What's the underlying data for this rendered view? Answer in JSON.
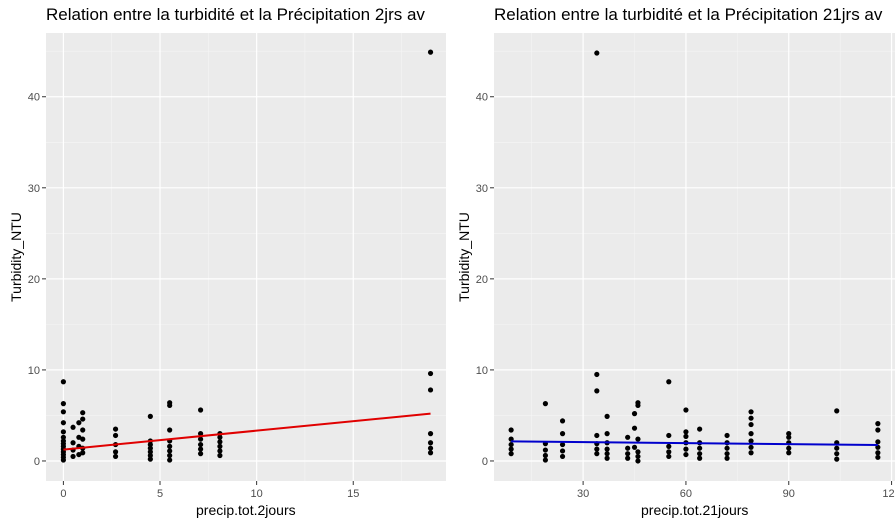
{
  "chart_data": [
    {
      "type": "scatter",
      "title": "Relation entre la turbidité et la Précipitation 2jrs av",
      "xlabel": "precip.tot.2jours",
      "ylabel": "Turbidity_NTU",
      "xlim": [
        -0.9,
        19.8
      ],
      "ylim": [
        -2.2,
        47.0
      ],
      "xticks": [
        0,
        5,
        10,
        15
      ],
      "yticks": [
        0,
        10,
        20,
        30,
        40
      ],
      "grid": true,
      "fit_color": "#e00000",
      "points": [
        [
          0,
          0.1
        ],
        [
          0,
          0.4
        ],
        [
          0,
          0.7
        ],
        [
          0,
          1.0
        ],
        [
          0,
          1.3
        ],
        [
          0,
          1.6
        ],
        [
          0,
          1.9
        ],
        [
          0,
          2.2
        ],
        [
          0,
          2.6
        ],
        [
          0,
          3.2
        ],
        [
          0,
          4.2
        ],
        [
          0,
          5.4
        ],
        [
          0,
          6.3
        ],
        [
          0,
          8.7
        ],
        [
          0.5,
          0.5
        ],
        [
          0.5,
          1.2
        ],
        [
          0.5,
          2.0
        ],
        [
          0.5,
          3.7
        ],
        [
          0.8,
          0.7
        ],
        [
          0.8,
          1.6
        ],
        [
          0.8,
          2.6
        ],
        [
          0.8,
          4.2
        ],
        [
          1.0,
          0.9
        ],
        [
          1.0,
          1.4
        ],
        [
          1.0,
          2.4
        ],
        [
          1.0,
          3.4
        ],
        [
          1.0,
          4.6
        ],
        [
          1.0,
          5.3
        ],
        [
          2.7,
          0.5
        ],
        [
          2.7,
          1.0
        ],
        [
          2.7,
          1.8
        ],
        [
          2.7,
          2.8
        ],
        [
          2.7,
          3.5
        ],
        [
          4.5,
          0.2
        ],
        [
          4.5,
          0.6
        ],
        [
          4.5,
          1.0
        ],
        [
          4.5,
          1.4
        ],
        [
          4.5,
          1.8
        ],
        [
          4.5,
          2.2
        ],
        [
          4.5,
          4.9
        ],
        [
          5.5,
          0.1
        ],
        [
          5.5,
          0.6
        ],
        [
          5.5,
          1.1
        ],
        [
          5.5,
          1.6
        ],
        [
          5.5,
          2.2
        ],
        [
          5.5,
          6.1
        ],
        [
          5.5,
          6.4
        ],
        [
          5.5,
          3.4
        ],
        [
          7.1,
          0.8
        ],
        [
          7.1,
          1.3
        ],
        [
          7.1,
          1.8
        ],
        [
          7.1,
          2.4
        ],
        [
          7.1,
          3.0
        ],
        [
          7.1,
          5.6
        ],
        [
          8.1,
          0.6
        ],
        [
          8.1,
          1.1
        ],
        [
          8.1,
          1.6
        ],
        [
          8.1,
          2.1
        ],
        [
          8.1,
          2.6
        ],
        [
          8.1,
          3.0
        ],
        [
          19.0,
          0.9
        ],
        [
          19.0,
          1.4
        ],
        [
          19.0,
          2.0
        ],
        [
          19.0,
          3.0
        ],
        [
          19.0,
          7.8
        ],
        [
          19.0,
          9.6
        ],
        [
          19.0,
          44.9
        ]
      ],
      "fit": [
        [
          0,
          1.25
        ],
        [
          19.0,
          5.2
        ]
      ]
    },
    {
      "type": "scatter",
      "title": "Relation entre la turbidité et la Précipitation 21jrs av",
      "xlabel": "precip.tot.21jours",
      "ylabel": "Turbidity_NTU",
      "xlim": [
        4.0,
        121.0
      ],
      "ylim": [
        -2.2,
        47.0
      ],
      "xticks": [
        30,
        60,
        90,
        120
      ],
      "yticks": [
        0,
        10,
        20,
        30,
        40
      ],
      "grid": true,
      "fit_color": "#0000cc",
      "points": [
        [
          9,
          0.8
        ],
        [
          9,
          1.3
        ],
        [
          9,
          1.8
        ],
        [
          9,
          2.4
        ],
        [
          9,
          3.4
        ],
        [
          19,
          0.1
        ],
        [
          19,
          0.6
        ],
        [
          19,
          1.2
        ],
        [
          19,
          1.9
        ],
        [
          19,
          6.3
        ],
        [
          24,
          0.5
        ],
        [
          24,
          1.1
        ],
        [
          24,
          1.8
        ],
        [
          24,
          3.0
        ],
        [
          24,
          4.4
        ],
        [
          34,
          0.8
        ],
        [
          34,
          1.3
        ],
        [
          34,
          1.9
        ],
        [
          34,
          2.8
        ],
        [
          34,
          7.7
        ],
        [
          34,
          9.5
        ],
        [
          34,
          44.8
        ],
        [
          37,
          0.3
        ],
        [
          37,
          0.8
        ],
        [
          37,
          1.3
        ],
        [
          37,
          2.0
        ],
        [
          37,
          3.0
        ],
        [
          37,
          4.9
        ],
        [
          43,
          0.3
        ],
        [
          43,
          0.8
        ],
        [
          43,
          1.4
        ],
        [
          43,
          2.6
        ],
        [
          45,
          1.5
        ],
        [
          45,
          3.6
        ],
        [
          45,
          5.2
        ],
        [
          46,
          0.0
        ],
        [
          46,
          0.5
        ],
        [
          46,
          1.0
        ],
        [
          46,
          2.4
        ],
        [
          46,
          6.1
        ],
        [
          46,
          6.4
        ],
        [
          55,
          0.5
        ],
        [
          55,
          1.0
        ],
        [
          55,
          1.6
        ],
        [
          55,
          2.8
        ],
        [
          55,
          8.7
        ],
        [
          60,
          0.7
        ],
        [
          60,
          1.3
        ],
        [
          60,
          2.0
        ],
        [
          60,
          2.7
        ],
        [
          60,
          3.2
        ],
        [
          60,
          5.6
        ],
        [
          64,
          0.3
        ],
        [
          64,
          0.8
        ],
        [
          64,
          1.4
        ],
        [
          64,
          2.0
        ],
        [
          64,
          3.5
        ],
        [
          72,
          0.3
        ],
        [
          72,
          0.8
        ],
        [
          72,
          1.4
        ],
        [
          72,
          2.0
        ],
        [
          72,
          2.8
        ],
        [
          79,
          0.9
        ],
        [
          79,
          1.5
        ],
        [
          79,
          2.2
        ],
        [
          79,
          3.0
        ],
        [
          79,
          4.0
        ],
        [
          79,
          4.7
        ],
        [
          79,
          5.4
        ],
        [
          90,
          0.9
        ],
        [
          90,
          1.4
        ],
        [
          90,
          2.0
        ],
        [
          90,
          2.6
        ],
        [
          90,
          3.0
        ],
        [
          104,
          0.2
        ],
        [
          104,
          0.8
        ],
        [
          104,
          1.4
        ],
        [
          104,
          2.0
        ],
        [
          104,
          5.5
        ],
        [
          116,
          0.4
        ],
        [
          116,
          0.9
        ],
        [
          116,
          1.5
        ],
        [
          116,
          2.1
        ],
        [
          116,
          3.4
        ],
        [
          116,
          4.1
        ]
      ],
      "fit": [
        [
          9,
          2.15
        ],
        [
          116,
          1.75
        ]
      ]
    }
  ]
}
